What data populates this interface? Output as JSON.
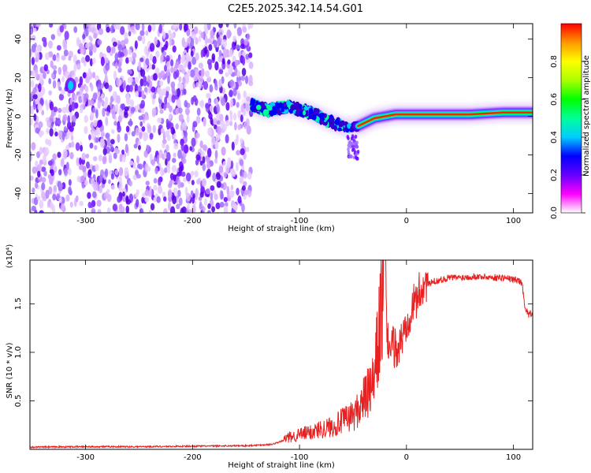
{
  "figure": {
    "title": "C2E5.2025.342.14.54.G01"
  },
  "chart_data": [
    {
      "type": "heatmap",
      "title": "C2E5.2025.342.14.54.G01",
      "xlabel": "Height of straight line (km)",
      "ylabel": "Frequency (Hz)",
      "xlim": [
        -352,
        118
      ],
      "ylim": [
        -50,
        48
      ],
      "xticks": [
        -300,
        -200,
        -100,
        0,
        100
      ],
      "yticks": [
        -40,
        -20,
        0,
        20,
        40
      ],
      "grid": false,
      "colorbar": {
        "label": "Normalized spectral amplitude",
        "range": [
          0,
          1
        ],
        "ticks": [
          "0.0",
          "0.2",
          "0.4",
          "0.6",
          "0.8"
        ],
        "colormap": [
          "#ffffff",
          "#ff00ff",
          "#6600ff",
          "#0000ff",
          "#00ccff",
          "#00ff99",
          "#00ff00",
          "#aaff00",
          "#ffff00",
          "#ff9900",
          "#ff0000"
        ]
      },
      "regions": [
        {
          "name": "noise",
          "x_range": [
            -352,
            -145
          ],
          "y_range": [
            -50,
            48
          ],
          "amplitude": "0.0-0.2"
        },
        {
          "name": "signal-track",
          "points": [
            [
              -145,
              6
            ],
            [
              -130,
              3
            ],
            [
              -110,
              5
            ],
            [
              -90,
              2
            ],
            [
              -70,
              -3
            ],
            [
              -55,
              -6
            ],
            [
              -45,
              -5
            ],
            [
              -30,
              -1
            ],
            [
              -10,
              1
            ],
            [
              0,
              1
            ],
            [
              20,
              1
            ],
            [
              60,
              1
            ],
            [
              90,
              2
            ],
            [
              118,
              2
            ]
          ],
          "amplitude": "0.4-1.0"
        },
        {
          "name": "isolated-blob",
          "x": -314,
          "y": 16,
          "amplitude": "0.4"
        }
      ]
    },
    {
      "type": "line",
      "xlabel": "Height of straight line (km)",
      "ylabel": "SNR (10 * v/v)",
      "y_multiplier": "(x10⁴)",
      "xlim": [
        -352,
        118
      ],
      "ylim": [
        0,
        1.95
      ],
      "xticks": [
        -300,
        -200,
        -100,
        0,
        100
      ],
      "yticks": [
        0.5,
        1.0,
        1.5
      ],
      "grid": false,
      "series_color": "#e82020",
      "x": [
        -352,
        -300,
        -250,
        -200,
        -150,
        -125,
        -112,
        -100,
        -90,
        -80,
        -70,
        -60,
        -50,
        -45,
        -40,
        -35,
        -30,
        -27,
        -24,
        -22,
        -20,
        -18,
        -15,
        -12,
        -8,
        -5,
        -2,
        0,
        3,
        8,
        12,
        15,
        20,
        25,
        30,
        40,
        50,
        60,
        70,
        80,
        90,
        100,
        105,
        108,
        111,
        114,
        118
      ],
      "y": [
        0.02,
        0.025,
        0.025,
        0.03,
        0.035,
        0.05,
        0.1,
        0.13,
        0.15,
        0.18,
        0.2,
        0.25,
        0.3,
        0.35,
        0.45,
        0.5,
        0.6,
        0.9,
        1.2,
        1.3,
        1.95,
        1.1,
        0.95,
        1.0,
        0.95,
        1.05,
        1.15,
        1.25,
        1.35,
        1.45,
        1.55,
        1.62,
        1.68,
        1.72,
        1.73,
        1.76,
        1.76,
        1.77,
        1.77,
        1.76,
        1.76,
        1.74,
        1.73,
        1.7,
        1.45,
        1.38,
        1.4
      ]
    }
  ]
}
